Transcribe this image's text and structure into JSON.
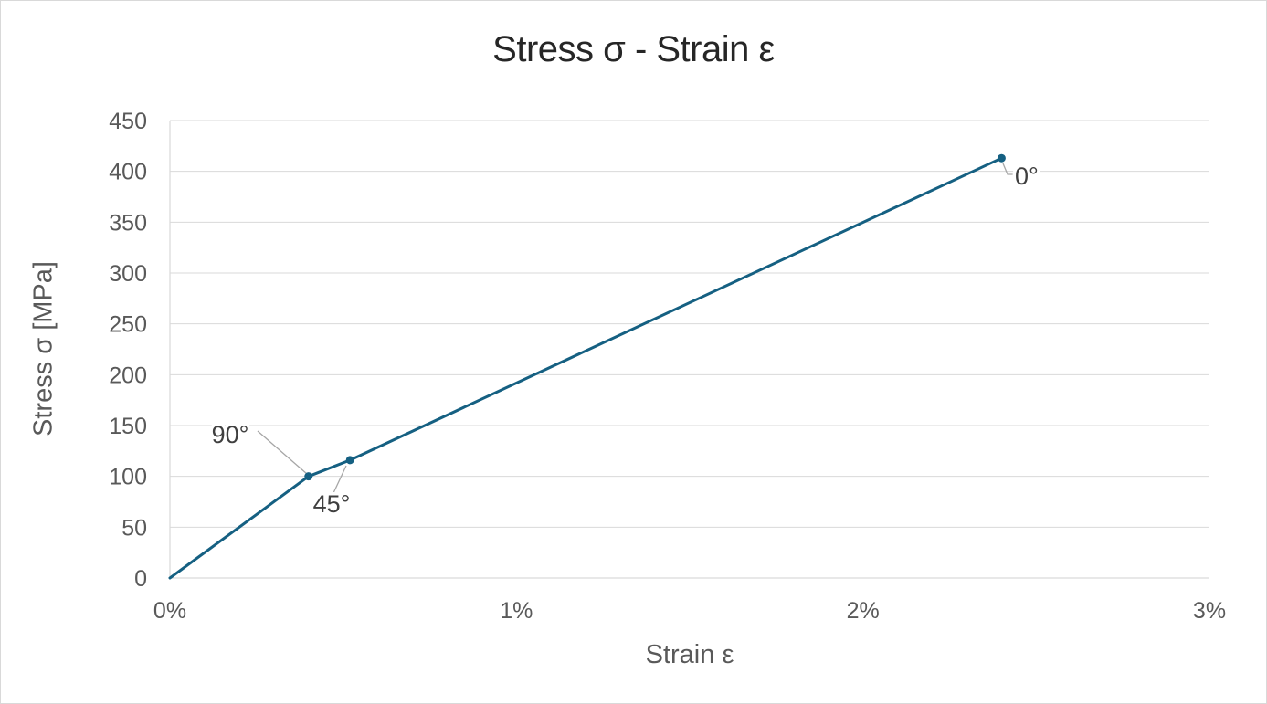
{
  "chart_data": {
    "type": "line",
    "title": "Stress σ - Strain ε",
    "xlabel": "Strain ε",
    "ylabel": "Stress σ [MPa]",
    "x_unit": "strain in percent",
    "y_unit": "MPa",
    "xlim": [
      0,
      3
    ],
    "ylim": [
      0,
      450
    ],
    "xticks": {
      "values": [
        0,
        1,
        2,
        3
      ],
      "labels": [
        "0%",
        "1%",
        "2%",
        "3%"
      ]
    },
    "yticks": {
      "values": [
        0,
        50,
        100,
        150,
        200,
        250,
        300,
        350,
        400,
        450
      ],
      "labels": [
        "0",
        "50",
        "100",
        "150",
        "200",
        "250",
        "300",
        "350",
        "400",
        "450"
      ]
    },
    "grid": "horizontal-only",
    "legend": "none",
    "series": [
      {
        "name": "stress-strain-curve",
        "color": "#156082",
        "marker": "circle",
        "points": [
          {
            "x": 0,
            "y": 0
          },
          {
            "x": 0.4,
            "y": 100,
            "label": "90°"
          },
          {
            "x": 0.52,
            "y": 116,
            "label": "45°"
          },
          {
            "x": 2.4,
            "y": 413,
            "label": "0°"
          }
        ]
      }
    ],
    "colors": {
      "line": "#156082",
      "marker": "#156082",
      "grid": "#d9d9d9",
      "axis": "#d9d9d9",
      "tick_text": "#595959",
      "axis_title_text": "#595959",
      "title_text": "#262626",
      "annotation_text": "#3f3f3f",
      "leader_line": "#a6a6a6",
      "background": "#ffffff",
      "frame_border": "#d9d9d9"
    }
  }
}
